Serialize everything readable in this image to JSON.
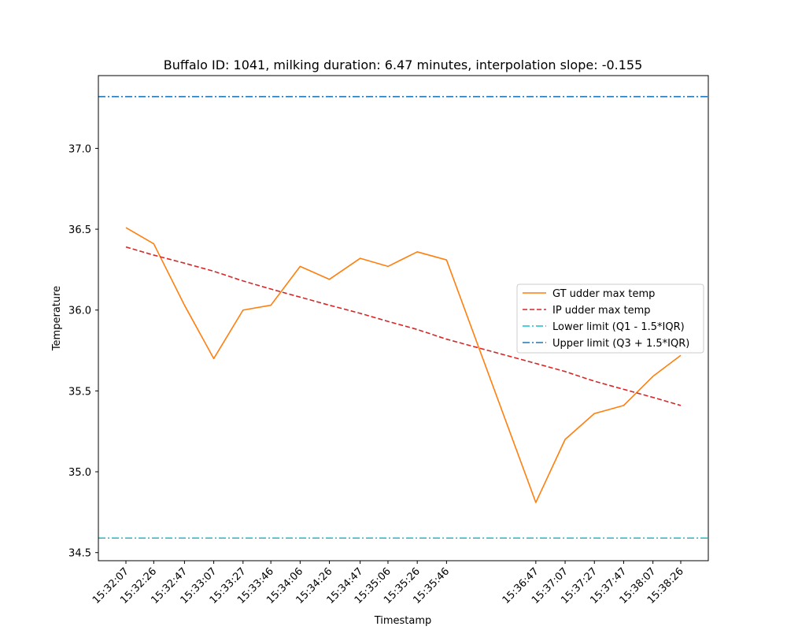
{
  "chart_data": {
    "type": "line",
    "title": "Buffalo ID: 1041, milking duration: 6.47 minutes, interpolation slope: -0.155",
    "xlabel": "Timestamp",
    "ylabel": "Temperature",
    "ylim": [
      34.45,
      37.45
    ],
    "y_ticks": [
      "34.5",
      "35.0",
      "35.5",
      "36.0",
      "36.5",
      "37.0"
    ],
    "x_seconds_from_start": [
      0,
      19,
      40,
      60,
      80,
      99,
      119,
      139,
      160,
      179,
      199,
      219,
      280,
      300,
      320,
      340,
      360,
      379
    ],
    "x_tick_labels": [
      "15:32:07",
      "15:32:26",
      "15:32:47",
      "15:33:07",
      "15:33:27",
      "15:33:46",
      "15:34:06",
      "15:34:26",
      "15:34:47",
      "15:35:06",
      "15:35:26",
      "15:35:46",
      "15:36:47",
      "15:37:07",
      "15:37:27",
      "15:37:47",
      "15:38:07",
      "15:38:26"
    ],
    "series": [
      {
        "name": "GT udder max temp",
        "style": "solid",
        "color": "#ff7f0e",
        "values": [
          36.51,
          36.41,
          36.03,
          35.7,
          36.0,
          36.03,
          36.27,
          36.19,
          36.32,
          36.27,
          36.36,
          36.31,
          34.81,
          35.2,
          35.36,
          35.41,
          35.59,
          35.72
        ]
      },
      {
        "name": "IP udder max temp",
        "style": "dashed",
        "color": "#d62728",
        "values": [
          36.39,
          36.34,
          36.29,
          36.24,
          36.18,
          36.13,
          36.08,
          36.03,
          35.98,
          35.93,
          35.88,
          35.82,
          35.67,
          35.62,
          35.56,
          35.51,
          35.46,
          35.41
        ]
      }
    ],
    "hlines": [
      {
        "name": "Lower limit (Q1 - 1.5*IQR)",
        "y": 34.59,
        "color": "#17becf",
        "style": "dashdot"
      },
      {
        "name": "Upper limit (Q3 + 1.5*IQR)",
        "y": 37.32,
        "color": "#1f77b4",
        "style": "dashdot"
      }
    ],
    "legend_position": "center-right",
    "grid": false
  }
}
